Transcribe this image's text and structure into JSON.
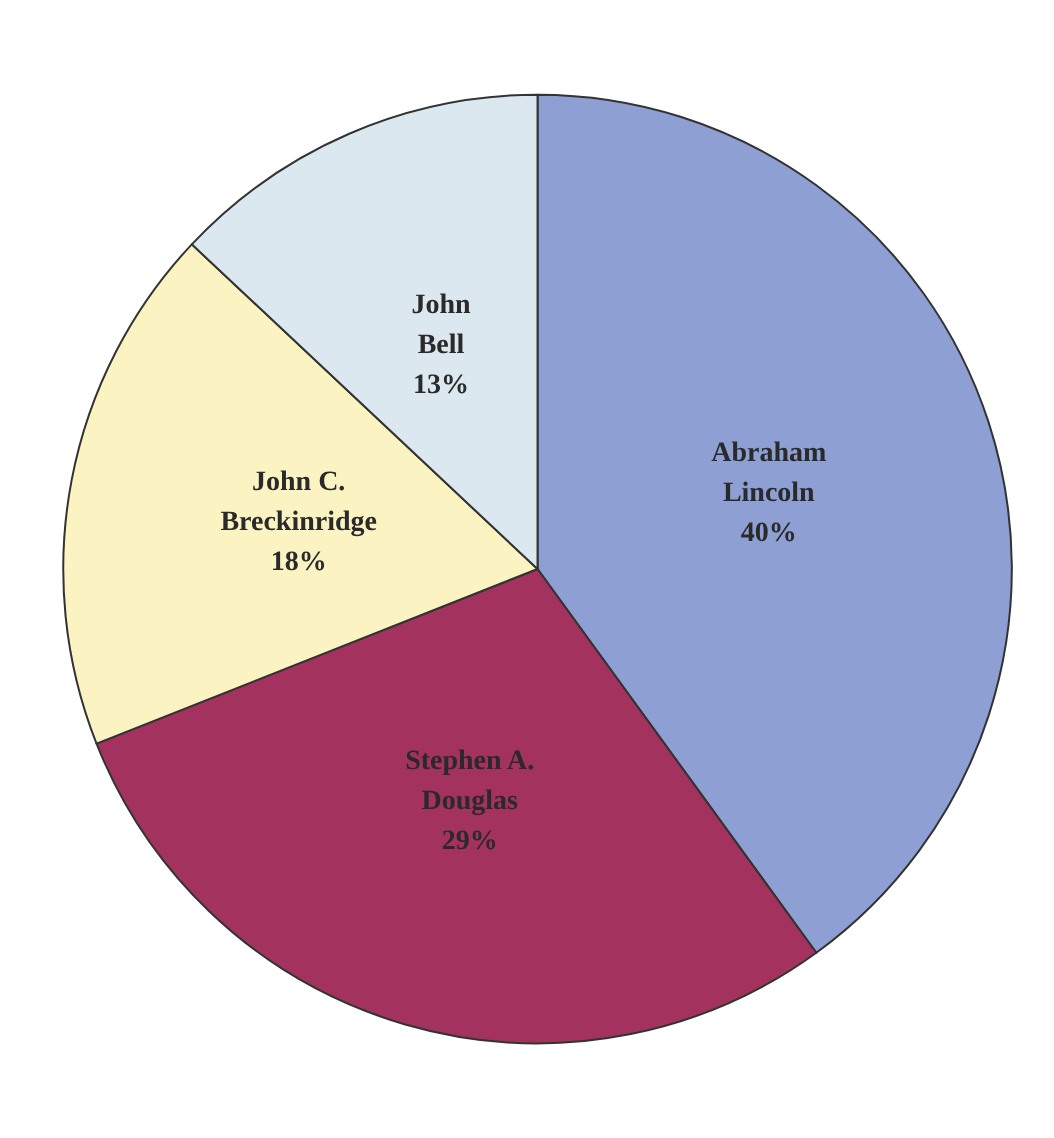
{
  "chart_data": {
    "type": "pie",
    "categories": [
      "Abraham Lincoln",
      "Stephen A. Douglas",
      "John C. Breckinridge",
      "John Bell"
    ],
    "values": [
      40,
      29,
      18,
      13
    ],
    "value_labels": [
      "40%",
      "29%",
      "18%",
      "13%"
    ],
    "colors": [
      "#8e9fd3",
      "#a3335e",
      "#fbf4c2",
      "#dce8f0"
    ],
    "legend": false
  }
}
